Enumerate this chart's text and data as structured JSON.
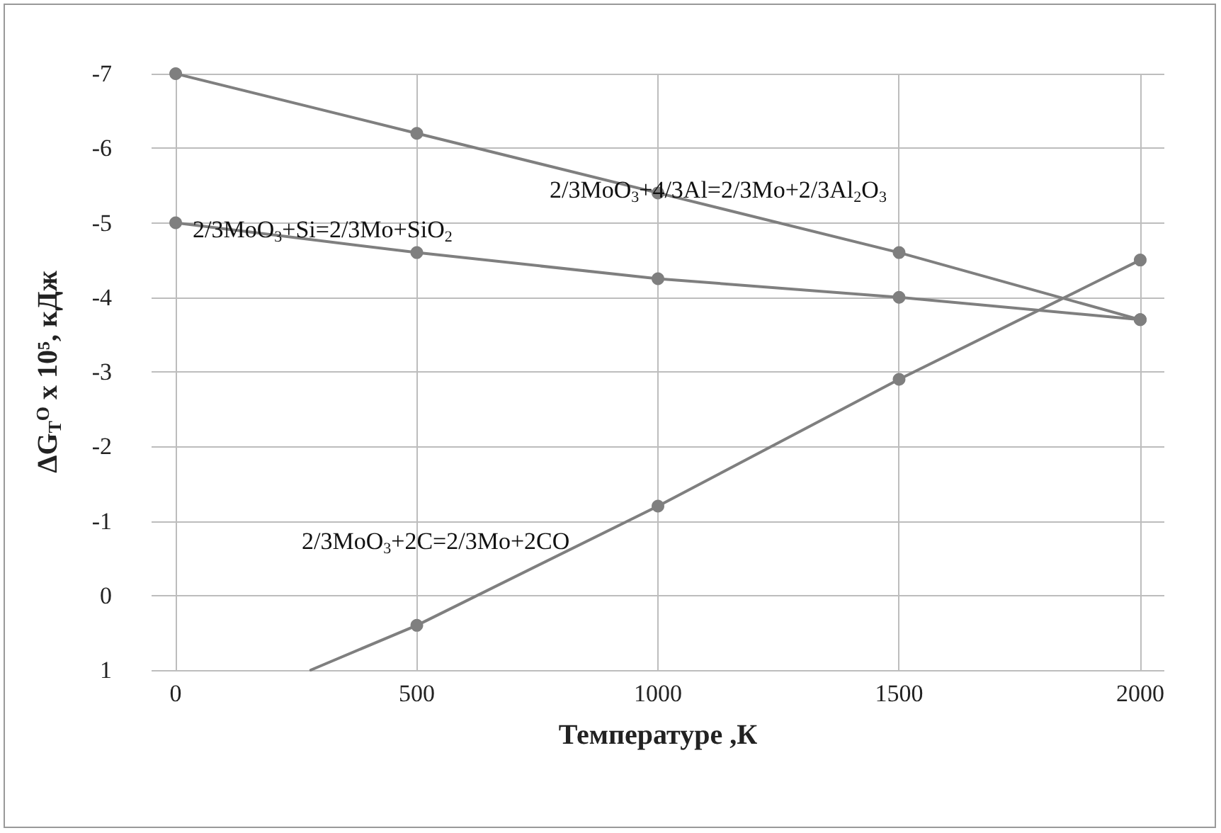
{
  "chart_data": {
    "type": "line",
    "xlabel": "Температуре ,К",
    "ylabel": "ΔG$_{T}$$^{O}$ x 10⁵, кДж",
    "xlim": [
      -50,
      2050
    ],
    "xticks": [
      0,
      500,
      1000,
      1500,
      2000
    ],
    "ylim": [
      1,
      -7
    ],
    "yticks": [
      -7,
      -6,
      -5,
      -4,
      -3,
      -2,
      -1,
      0,
      1
    ],
    "grid": true,
    "marker": "circle",
    "line_style": "solid",
    "series": [
      {
        "color": "#7f7f7f",
        "x": [
          0,
          500,
          1000,
          1500,
          2000
        ],
        "values": [
          -7,
          -6.2,
          -5.4,
          -4.6,
          -3.7
        ]
      },
      {
        "color": "#7f7f7f",
        "x": [
          0,
          500,
          1000,
          1500,
          2000
        ],
        "values": [
          -5,
          -4.6,
          -4.25,
          -4.0,
          -3.7
        ]
      },
      {
        "color": "#7f7f7f",
        "x": [
          280,
          500,
          1000,
          1500,
          2000
        ],
        "values": [
          1,
          0.4,
          -1.2,
          -2.9,
          -4.5
        ]
      }
    ],
    "annotations": [
      "2/3MoO$_{3}$+4/3Al=2/3Mo+2/3Al$_{2}$O$_{3}$",
      "2/3MoO$_{3}$+Si=2/3Mo+SiO$_{2}$",
      "2/3MoO$_{3}$+2C=2/3Mo+2CO"
    ]
  }
}
